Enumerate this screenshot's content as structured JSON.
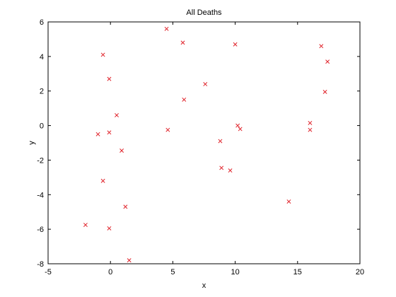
{
  "chart_data": {
    "type": "scatter",
    "title": "All Deaths",
    "xlabel": "x",
    "ylabel": "y",
    "xlim": [
      -5,
      20
    ],
    "ylim": [
      -8,
      6
    ],
    "xticks": [
      -5,
      0,
      5,
      10,
      15,
      20
    ],
    "yticks": [
      -8,
      -6,
      -4,
      -2,
      0,
      2,
      4,
      6
    ],
    "xtick_labels": [
      "-5",
      "0",
      "5",
      "10",
      "15",
      "20"
    ],
    "ytick_labels": [
      "-8",
      "-6",
      "-4",
      "-2",
      "0",
      "2",
      "4",
      "6"
    ],
    "grid": false,
    "marker": "x",
    "marker_color": "#e0232b",
    "series": [
      {
        "points": [
          [
            -0.6,
            4.1
          ],
          [
            -0.1,
            2.7
          ],
          [
            0.5,
            0.6
          ],
          [
            -1.0,
            -0.5
          ],
          [
            -0.1,
            -0.4
          ],
          [
            0.9,
            -1.45
          ],
          [
            -0.6,
            -3.2
          ],
          [
            1.2,
            -4.7
          ],
          [
            -2.0,
            -5.75
          ],
          [
            -0.1,
            -5.95
          ],
          [
            1.5,
            -7.8
          ],
          [
            4.5,
            5.6
          ],
          [
            5.8,
            4.8
          ],
          [
            4.6,
            -0.25
          ],
          [
            5.9,
            1.5
          ],
          [
            7.6,
            2.4
          ],
          [
            10.0,
            4.7
          ],
          [
            8.8,
            -0.9
          ],
          [
            8.9,
            -2.45
          ],
          [
            9.6,
            -2.6
          ],
          [
            10.2,
            0.0
          ],
          [
            10.4,
            -0.2
          ],
          [
            14.3,
            -4.4
          ],
          [
            16.0,
            0.15
          ],
          [
            16.0,
            -0.25
          ],
          [
            16.9,
            4.6
          ],
          [
            17.4,
            3.7
          ],
          [
            17.2,
            1.95
          ]
        ]
      }
    ]
  }
}
